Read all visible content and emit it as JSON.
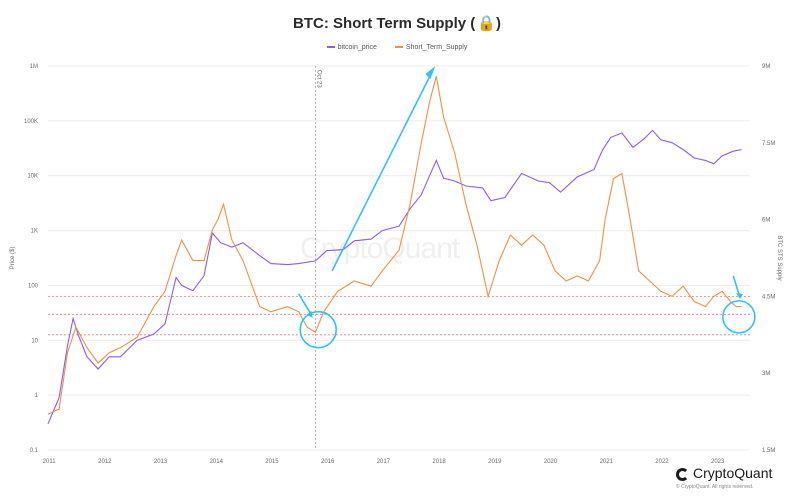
{
  "title": "BTC: Short Term Supply",
  "lock_icon": "lock-icon",
  "legend": [
    {
      "name": "bitcoin_price",
      "color": "#8a5cf0"
    },
    {
      "name": "Short_Term_Supply",
      "color": "#f0913f"
    }
  ],
  "watermark": "CryptoQuant",
  "brand": "CryptoQuant",
  "rights": "© CryptoQuant. All rights reserved.",
  "colors": {
    "price": "#8a5cf0",
    "sts": "#f0913f",
    "arrow": "#2ec4f0",
    "ref_line": "#e05a5a"
  },
  "chart_data": {
    "type": "line",
    "title": "BTC: Short Term Supply",
    "ylabel": "Price ($)",
    "y2label": "BTC STS Supply",
    "x_ticks": [
      "2011",
      "2012",
      "2013",
      "2014",
      "2015",
      "2016",
      "2017",
      "2018",
      "2019",
      "2020",
      "2021",
      "2022",
      "2023"
    ],
    "y_ticks": [
      "1M",
      "100K",
      "10K",
      "1K",
      "100",
      "10",
      "1",
      "0.1"
    ],
    "y2_ticks": [
      "9M",
      "7.5M",
      "6M",
      "4.5M",
      "3M",
      "1.5M"
    ],
    "y_scale": "log",
    "ylim": [
      0.1,
      1000000
    ],
    "y2lim": [
      1500000,
      9000000
    ],
    "annotation": {
      "label": "Oct 23",
      "x": 2015.8
    },
    "reference_lines_y2": [
      4500000,
      4150000,
      3750000
    ],
    "series": [
      {
        "name": "bitcoin_price",
        "axis": "left",
        "points": [
          [
            2011.0,
            0.3
          ],
          [
            2011.2,
            0.9
          ],
          [
            2011.35,
            8
          ],
          [
            2011.45,
            25
          ],
          [
            2011.55,
            12
          ],
          [
            2011.7,
            5
          ],
          [
            2011.9,
            3
          ],
          [
            2012.1,
            5
          ],
          [
            2012.3,
            5
          ],
          [
            2012.6,
            10
          ],
          [
            2012.9,
            13
          ],
          [
            2013.1,
            20
          ],
          [
            2013.3,
            140
          ],
          [
            2013.4,
            100
          ],
          [
            2013.6,
            80
          ],
          [
            2013.8,
            150
          ],
          [
            2013.95,
            900
          ],
          [
            2014.1,
            600
          ],
          [
            2014.3,
            500
          ],
          [
            2014.5,
            600
          ],
          [
            2014.8,
            350
          ],
          [
            2015.0,
            250
          ],
          [
            2015.3,
            240
          ],
          [
            2015.5,
            250
          ],
          [
            2015.8,
            280
          ],
          [
            2016.0,
            430
          ],
          [
            2016.3,
            450
          ],
          [
            2016.5,
            650
          ],
          [
            2016.8,
            700
          ],
          [
            2017.0,
            1000
          ],
          [
            2017.3,
            1200
          ],
          [
            2017.5,
            2500
          ],
          [
            2017.7,
            4500
          ],
          [
            2017.85,
            10000
          ],
          [
            2017.97,
            19000
          ],
          [
            2018.1,
            9000
          ],
          [
            2018.3,
            8000
          ],
          [
            2018.5,
            6500
          ],
          [
            2018.8,
            6000
          ],
          [
            2018.95,
            3500
          ],
          [
            2019.2,
            4000
          ],
          [
            2019.5,
            11000
          ],
          [
            2019.8,
            8000
          ],
          [
            2020.0,
            7500
          ],
          [
            2020.2,
            5000
          ],
          [
            2020.5,
            9500
          ],
          [
            2020.8,
            13000
          ],
          [
            2020.95,
            29000
          ],
          [
            2021.1,
            50000
          ],
          [
            2021.3,
            60000
          ],
          [
            2021.5,
            33000
          ],
          [
            2021.7,
            47000
          ],
          [
            2021.85,
            67000
          ],
          [
            2022.0,
            45000
          ],
          [
            2022.2,
            40000
          ],
          [
            2022.4,
            30000
          ],
          [
            2022.6,
            21000
          ],
          [
            2022.8,
            19000
          ],
          [
            2022.95,
            16500
          ],
          [
            2023.1,
            23000
          ],
          [
            2023.3,
            28000
          ],
          [
            2023.45,
            30000
          ]
        ]
      },
      {
        "name": "Short_Term_Supply",
        "axis": "right",
        "points": [
          [
            2011.0,
            2.2
          ],
          [
            2011.2,
            2.3
          ],
          [
            2011.35,
            3.4
          ],
          [
            2011.5,
            3.9
          ],
          [
            2011.7,
            3.5
          ],
          [
            2011.9,
            3.2
          ],
          [
            2012.1,
            3.4
          ],
          [
            2012.3,
            3.5
          ],
          [
            2012.6,
            3.7
          ],
          [
            2012.9,
            4.3
          ],
          [
            2013.1,
            4.6
          ],
          [
            2013.3,
            5.3
          ],
          [
            2013.4,
            5.6
          ],
          [
            2013.6,
            5.2
          ],
          [
            2013.8,
            5.2
          ],
          [
            2013.95,
            5.8
          ],
          [
            2014.05,
            6.0
          ],
          [
            2014.15,
            6.3
          ],
          [
            2014.3,
            5.6
          ],
          [
            2014.5,
            5.2
          ],
          [
            2014.8,
            4.3
          ],
          [
            2015.0,
            4.2
          ],
          [
            2015.3,
            4.3
          ],
          [
            2015.5,
            4.2
          ],
          [
            2015.65,
            3.9
          ],
          [
            2015.8,
            3.8
          ],
          [
            2015.95,
            4.2
          ],
          [
            2016.2,
            4.6
          ],
          [
            2016.5,
            4.8
          ],
          [
            2016.8,
            4.7
          ],
          [
            2017.0,
            5.0
          ],
          [
            2017.3,
            5.4
          ],
          [
            2017.5,
            6.3
          ],
          [
            2017.7,
            7.5
          ],
          [
            2017.85,
            8.3
          ],
          [
            2017.97,
            8.8
          ],
          [
            2018.1,
            8.0
          ],
          [
            2018.3,
            7.3
          ],
          [
            2018.5,
            6.3
          ],
          [
            2018.7,
            5.5
          ],
          [
            2018.9,
            4.5
          ],
          [
            2019.1,
            5.2
          ],
          [
            2019.3,
            5.7
          ],
          [
            2019.5,
            5.5
          ],
          [
            2019.7,
            5.7
          ],
          [
            2019.9,
            5.5
          ],
          [
            2020.1,
            5.0
          ],
          [
            2020.3,
            4.8
          ],
          [
            2020.5,
            4.9
          ],
          [
            2020.7,
            4.8
          ],
          [
            2020.9,
            5.2
          ],
          [
            2021.0,
            6.0
          ],
          [
            2021.15,
            6.8
          ],
          [
            2021.3,
            6.9
          ],
          [
            2021.45,
            6.0
          ],
          [
            2021.6,
            5.0
          ],
          [
            2021.8,
            4.8
          ],
          [
            2022.0,
            4.6
          ],
          [
            2022.2,
            4.5
          ],
          [
            2022.4,
            4.7
          ],
          [
            2022.6,
            4.4
          ],
          [
            2022.8,
            4.3
          ],
          [
            2022.95,
            4.5
          ],
          [
            2023.1,
            4.6
          ],
          [
            2023.25,
            4.4
          ],
          [
            2023.35,
            4.3
          ],
          [
            2023.45,
            4.3
          ]
        ]
      }
    ]
  }
}
